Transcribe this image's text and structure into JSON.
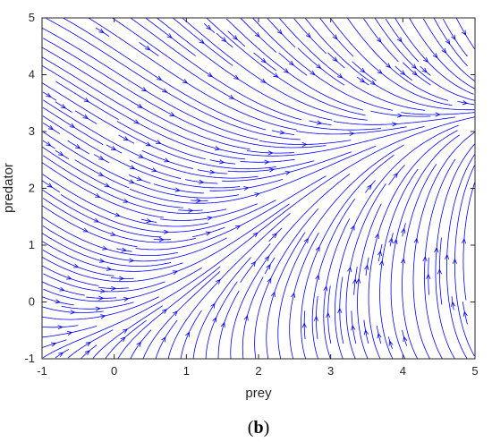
{
  "chart_data": {
    "type": "streamplot",
    "xlabel": "prey",
    "ylabel": "predator",
    "xlim": [
      -1,
      5
    ],
    "ylim": [
      -1,
      5
    ],
    "xticks": [
      "-1",
      "0",
      "1",
      "2",
      "3",
      "4",
      "5"
    ],
    "yticks": [
      "-1",
      "0",
      "1",
      "2",
      "3",
      "4",
      "5"
    ],
    "panel_label": {
      "open": "(",
      "letter": "b",
      "close": ")"
    },
    "stream_color": "#0000ff",
    "grid": false
  }
}
